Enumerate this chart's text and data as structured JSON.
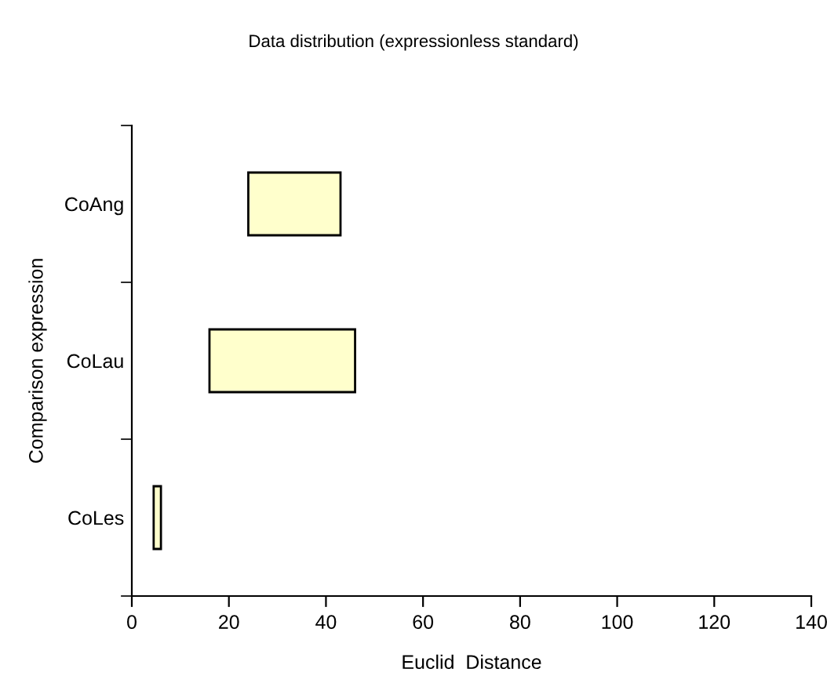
{
  "chart_data": {
    "type": "bar",
    "orientation": "horizontal",
    "title": "Data distribution (expressionless standard)",
    "xlabel": "Euclid  Distance",
    "ylabel": "Comparison expression",
    "categories": [
      "CoAng",
      "CoLau",
      "CoLes"
    ],
    "base": [
      24,
      16,
      4.5
    ],
    "values": [
      19,
      30,
      1.5
    ],
    "color": "#ffffcc",
    "xlim": [
      0,
      140
    ],
    "xticks": [
      0,
      20,
      40,
      60,
      80,
      100,
      120,
      140
    ],
    "grid": false,
    "legend": false
  }
}
